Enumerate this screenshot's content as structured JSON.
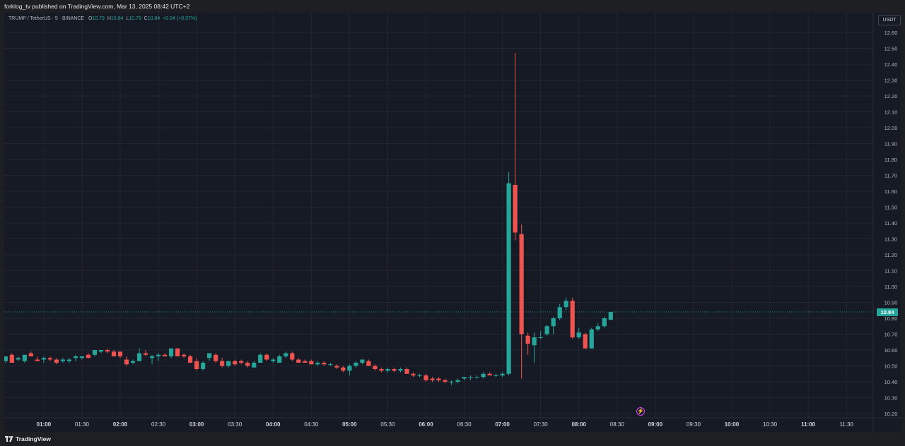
{
  "header": {
    "publisher_text": "forklog_tv published on TradingView.com, Mar 13, 2025 08:42 UTC+2"
  },
  "legend": {
    "symbol": "TRUMP / TetherUS · 5 · BINANCE",
    "o_label": "O",
    "o_value": "10.79",
    "h_label": "H",
    "h_value": "10.84",
    "l_label": "L",
    "l_value": "10.79",
    "c_label": "C",
    "c_value": "10.84",
    "change": "+0.04 (+0.37%)"
  },
  "toolbar": {
    "currency_button": "USDT"
  },
  "current_price": "10.84",
  "footer": {
    "brand": "TradingView"
  },
  "colors": {
    "up": "#26a69a",
    "down": "#ef5350",
    "background": "#161a25",
    "grid": "#232632",
    "price_line": "#26a69a"
  },
  "chart_data": {
    "type": "candlestick",
    "title": "TRUMP / TetherUS · 5 · BINANCE",
    "ylim": [
      10.16,
      12.66
    ],
    "y_ticks": [
      "12.60",
      "12.50",
      "12.40",
      "12.30",
      "12.20",
      "12.10",
      "12.00",
      "11.90",
      "11.80",
      "11.70",
      "11.60",
      "11.50",
      "11.40",
      "11.30",
      "11.20",
      "11.10",
      "11.00",
      "10.90",
      "10.80",
      "10.70",
      "10.60",
      "10.50",
      "10.40",
      "10.30",
      "10.20"
    ],
    "x_ticks": [
      "01:00",
      "01:30",
      "02:00",
      "02:30",
      "03:00",
      "03:30",
      "04:00",
      "04:30",
      "05:00",
      "05:30",
      "06:00",
      "06:30",
      "07:00",
      "07:30",
      "08:00",
      "08:30",
      "09:00",
      "09:30",
      "10:00",
      "10:30",
      "11:00",
      "11:30"
    ],
    "x_tick_values": [
      60,
      90,
      120,
      150,
      180,
      210,
      240,
      270,
      300,
      330,
      360,
      390,
      420,
      450,
      480,
      510,
      540,
      570,
      600,
      630,
      660,
      690
    ],
    "x_range_minutes": [
      29,
      711
    ],
    "candle_interval_minutes": 5,
    "current_price_line": 10.84,
    "candles": [
      {
        "t": 30,
        "o": 10.53,
        "h": 10.56,
        "l": 10.52,
        "c": 10.56
      },
      {
        "t": 35,
        "o": 10.57,
        "h": 10.58,
        "l": 10.52,
        "c": 10.52
      },
      {
        "t": 40,
        "o": 10.54,
        "h": 10.56,
        "l": 10.53,
        "c": 10.55
      },
      {
        "t": 45,
        "o": 10.53,
        "h": 10.56,
        "l": 10.52,
        "c": 10.57
      },
      {
        "t": 50,
        "o": 10.58,
        "h": 10.59,
        "l": 10.56,
        "c": 10.56
      },
      {
        "t": 55,
        "o": 10.54,
        "h": 10.56,
        "l": 10.53,
        "c": 10.53
      },
      {
        "t": 60,
        "o": 10.54,
        "h": 10.56,
        "l": 10.52,
        "c": 10.55
      },
      {
        "t": 65,
        "o": 10.55,
        "h": 10.56,
        "l": 10.53,
        "c": 10.54
      },
      {
        "t": 70,
        "o": 10.54,
        "h": 10.55,
        "l": 10.51,
        "c": 10.52
      },
      {
        "t": 75,
        "o": 10.53,
        "h": 10.55,
        "l": 10.52,
        "c": 10.54
      },
      {
        "t": 80,
        "o": 10.53,
        "h": 10.55,
        "l": 10.52,
        "c": 10.54
      },
      {
        "t": 85,
        "o": 10.55,
        "h": 10.57,
        "l": 10.53,
        "c": 10.56
      },
      {
        "t": 90,
        "o": 10.55,
        "h": 10.56,
        "l": 10.54,
        "c": 10.56
      },
      {
        "t": 95,
        "o": 10.57,
        "h": 10.58,
        "l": 10.55,
        "c": 10.55
      },
      {
        "t": 100,
        "o": 10.57,
        "h": 10.59,
        "l": 10.56,
        "c": 10.6
      },
      {
        "t": 105,
        "o": 10.59,
        "h": 10.6,
        "l": 10.58,
        "c": 10.6
      },
      {
        "t": 110,
        "o": 10.6,
        "h": 10.61,
        "l": 10.58,
        "c": 10.59
      },
      {
        "t": 115,
        "o": 10.59,
        "h": 10.6,
        "l": 10.56,
        "c": 10.56
      },
      {
        "t": 120,
        "o": 10.59,
        "h": 10.59,
        "l": 10.55,
        "c": 10.56
      },
      {
        "t": 125,
        "o": 10.54,
        "h": 10.56,
        "l": 10.5,
        "c": 10.51
      },
      {
        "t": 130,
        "o": 10.52,
        "h": 10.54,
        "l": 10.51,
        "c": 10.53
      },
      {
        "t": 135,
        "o": 10.53,
        "h": 10.61,
        "l": 10.53,
        "c": 10.58
      },
      {
        "t": 140,
        "o": 10.58,
        "h": 10.6,
        "l": 10.56,
        "c": 10.57
      },
      {
        "t": 145,
        "o": 10.55,
        "h": 10.57,
        "l": 10.51,
        "c": 10.56
      },
      {
        "t": 150,
        "o": 10.56,
        "h": 10.58,
        "l": 10.53,
        "c": 10.57
      },
      {
        "t": 155,
        "o": 10.57,
        "h": 10.58,
        "l": 10.56,
        "c": 10.56
      },
      {
        "t": 160,
        "o": 10.56,
        "h": 10.61,
        "l": 10.55,
        "c": 10.61
      },
      {
        "t": 165,
        "o": 10.61,
        "h": 10.61,
        "l": 10.56,
        "c": 10.56
      },
      {
        "t": 170,
        "o": 10.57,
        "h": 10.58,
        "l": 10.55,
        "c": 10.56
      },
      {
        "t": 175,
        "o": 10.56,
        "h": 10.57,
        "l": 10.52,
        "c": 10.52
      },
      {
        "t": 180,
        "o": 10.53,
        "h": 10.55,
        "l": 10.47,
        "c": 10.48
      },
      {
        "t": 185,
        "o": 10.48,
        "h": 10.53,
        "l": 10.47,
        "c": 10.52
      },
      {
        "t": 190,
        "o": 10.55,
        "h": 10.58,
        "l": 10.53,
        "c": 10.58
      },
      {
        "t": 195,
        "o": 10.57,
        "h": 10.58,
        "l": 10.52,
        "c": 10.53
      },
      {
        "t": 200,
        "o": 10.53,
        "h": 10.55,
        "l": 10.49,
        "c": 10.5
      },
      {
        "t": 205,
        "o": 10.5,
        "h": 10.53,
        "l": 10.49,
        "c": 10.53
      },
      {
        "t": 210,
        "o": 10.53,
        "h": 10.54,
        "l": 10.5,
        "c": 10.51
      },
      {
        "t": 215,
        "o": 10.53,
        "h": 10.54,
        "l": 10.51,
        "c": 10.52
      },
      {
        "t": 220,
        "o": 10.52,
        "h": 10.53,
        "l": 10.49,
        "c": 10.5
      },
      {
        "t": 225,
        "o": 10.49,
        "h": 10.53,
        "l": 10.49,
        "c": 10.52
      },
      {
        "t": 230,
        "o": 10.52,
        "h": 10.58,
        "l": 10.52,
        "c": 10.57
      },
      {
        "t": 235,
        "o": 10.57,
        "h": 10.58,
        "l": 10.53,
        "c": 10.54
      },
      {
        "t": 240,
        "o": 10.53,
        "h": 10.55,
        "l": 10.52,
        "c": 10.54
      },
      {
        "t": 245,
        "o": 10.52,
        "h": 10.57,
        "l": 10.52,
        "c": 10.56
      },
      {
        "t": 250,
        "o": 10.56,
        "h": 10.59,
        "l": 10.55,
        "c": 10.58
      },
      {
        "t": 255,
        "o": 10.58,
        "h": 10.59,
        "l": 10.53,
        "c": 10.54
      },
      {
        "t": 260,
        "o": 10.54,
        "h": 10.55,
        "l": 10.52,
        "c": 10.52
      },
      {
        "t": 265,
        "o": 10.53,
        "h": 10.54,
        "l": 10.52,
        "c": 10.52
      },
      {
        "t": 270,
        "o": 10.53,
        "h": 10.54,
        "l": 10.51,
        "c": 10.51
      },
      {
        "t": 275,
        "o": 10.51,
        "h": 10.53,
        "l": 10.5,
        "c": 10.52
      },
      {
        "t": 280,
        "o": 10.52,
        "h": 10.53,
        "l": 10.5,
        "c": 10.51
      },
      {
        "t": 285,
        "o": 10.51,
        "h": 10.52,
        "l": 10.5,
        "c": 10.51
      },
      {
        "t": 290,
        "o": 10.5,
        "h": 10.51,
        "l": 10.48,
        "c": 10.49
      },
      {
        "t": 295,
        "o": 10.49,
        "h": 10.5,
        "l": 10.46,
        "c": 10.47
      },
      {
        "t": 300,
        "o": 10.47,
        "h": 10.51,
        "l": 10.44,
        "c": 10.5
      },
      {
        "t": 305,
        "o": 10.5,
        "h": 10.53,
        "l": 10.49,
        "c": 10.52
      },
      {
        "t": 310,
        "o": 10.52,
        "h": 10.54,
        "l": 10.51,
        "c": 10.54
      },
      {
        "t": 315,
        "o": 10.53,
        "h": 10.54,
        "l": 10.5,
        "c": 10.5
      },
      {
        "t": 320,
        "o": 10.5,
        "h": 10.51,
        "l": 10.47,
        "c": 10.48
      },
      {
        "t": 325,
        "o": 10.48,
        "h": 10.49,
        "l": 10.46,
        "c": 10.47
      },
      {
        "t": 330,
        "o": 10.47,
        "h": 10.49,
        "l": 10.46,
        "c": 10.48
      },
      {
        "t": 335,
        "o": 10.48,
        "h": 10.49,
        "l": 10.46,
        "c": 10.47
      },
      {
        "t": 340,
        "o": 10.47,
        "h": 10.49,
        "l": 10.46,
        "c": 10.48
      },
      {
        "t": 345,
        "o": 10.48,
        "h": 10.49,
        "l": 10.45,
        "c": 10.45
      },
      {
        "t": 350,
        "o": 10.45,
        "h": 10.46,
        "l": 10.43,
        "c": 10.44
      },
      {
        "t": 355,
        "o": 10.44,
        "h": 10.45,
        "l": 10.43,
        "c": 10.44
      },
      {
        "t": 360,
        "o": 10.44,
        "h": 10.45,
        "l": 10.4,
        "c": 10.41
      },
      {
        "t": 365,
        "o": 10.42,
        "h": 10.43,
        "l": 10.4,
        "c": 10.41
      },
      {
        "t": 370,
        "o": 10.42,
        "h": 10.43,
        "l": 10.4,
        "c": 10.41
      },
      {
        "t": 375,
        "o": 10.41,
        "h": 10.42,
        "l": 10.39,
        "c": 10.4
      },
      {
        "t": 380,
        "o": 10.4,
        "h": 10.41,
        "l": 10.38,
        "c": 10.4
      },
      {
        "t": 385,
        "o": 10.4,
        "h": 10.42,
        "l": 10.39,
        "c": 10.41
      },
      {
        "t": 390,
        "o": 10.42,
        "h": 10.43,
        "l": 10.41,
        "c": 10.43
      },
      {
        "t": 395,
        "o": 10.43,
        "h": 10.44,
        "l": 10.41,
        "c": 10.43
      },
      {
        "t": 400,
        "o": 10.43,
        "h": 10.44,
        "l": 10.42,
        "c": 10.43
      },
      {
        "t": 405,
        "o": 10.43,
        "h": 10.46,
        "l": 10.42,
        "c": 10.45
      },
      {
        "t": 410,
        "o": 10.45,
        "h": 10.46,
        "l": 10.44,
        "c": 10.44
      },
      {
        "t": 415,
        "o": 10.44,
        "h": 10.45,
        "l": 10.43,
        "c": 10.44
      },
      {
        "t": 420,
        "o": 10.44,
        "h": 10.46,
        "l": 10.43,
        "c": 10.45
      },
      {
        "t": 425,
        "o": 10.45,
        "h": 11.72,
        "l": 10.44,
        "c": 11.65
      },
      {
        "t": 430,
        "o": 11.64,
        "h": 12.47,
        "l": 11.29,
        "c": 11.34
      },
      {
        "t": 435,
        "o": 11.33,
        "h": 11.39,
        "l": 10.42,
        "c": 10.7
      },
      {
        "t": 440,
        "o": 10.69,
        "h": 10.71,
        "l": 10.57,
        "c": 10.64
      },
      {
        "t": 445,
        "o": 10.63,
        "h": 10.71,
        "l": 10.52,
        "c": 10.68
      },
      {
        "t": 450,
        "o": 10.68,
        "h": 10.72,
        "l": 10.67,
        "c": 10.68
      },
      {
        "t": 455,
        "o": 10.7,
        "h": 10.76,
        "l": 10.69,
        "c": 10.75
      },
      {
        "t": 460,
        "o": 10.75,
        "h": 10.81,
        "l": 10.7,
        "c": 10.8
      },
      {
        "t": 465,
        "o": 10.8,
        "h": 10.89,
        "l": 10.79,
        "c": 10.87
      },
      {
        "t": 470,
        "o": 10.87,
        "h": 10.93,
        "l": 10.85,
        "c": 10.91
      },
      {
        "t": 475,
        "o": 10.91,
        "h": 10.93,
        "l": 10.67,
        "c": 10.68
      },
      {
        "t": 480,
        "o": 10.68,
        "h": 10.74,
        "l": 10.67,
        "c": 10.71
      },
      {
        "t": 485,
        "o": 10.7,
        "h": 10.71,
        "l": 10.61,
        "c": 10.61
      },
      {
        "t": 490,
        "o": 10.61,
        "h": 10.74,
        "l": 10.61,
        "c": 10.73
      },
      {
        "t": 495,
        "o": 10.73,
        "h": 10.77,
        "l": 10.72,
        "c": 10.75
      },
      {
        "t": 500,
        "o": 10.75,
        "h": 10.81,
        "l": 10.74,
        "c": 10.8
      },
      {
        "t": 505,
        "o": 10.79,
        "h": 10.84,
        "l": 10.79,
        "c": 10.84
      }
    ]
  }
}
